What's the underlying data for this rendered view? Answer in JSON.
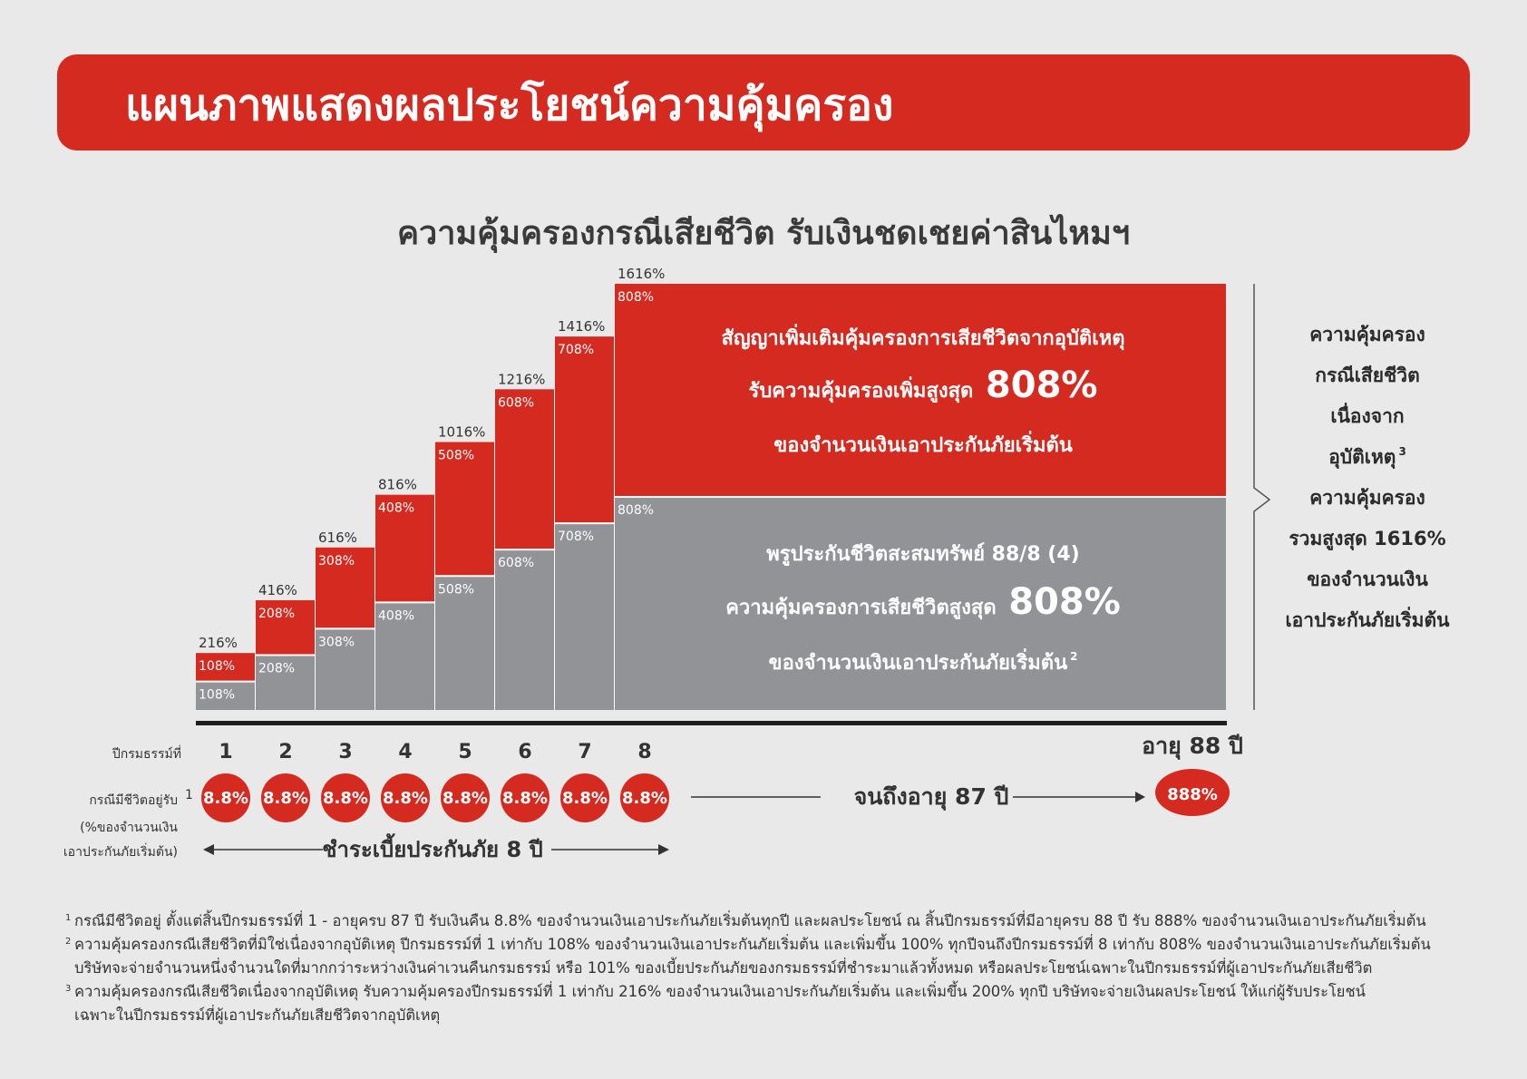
{
  "header": {
    "title": "แผนภาพแสดงผลประโยชน์ความคุ้มครอง"
  },
  "subtitle": "ความคุ้มครองกรณีเสียชีวิต รับเงินชดเชยค่าสินไหมฯ",
  "chart_data": {
    "type": "bar",
    "stacked": true,
    "categories": [
      "1",
      "2",
      "3",
      "4",
      "5",
      "6",
      "7",
      "8"
    ],
    "series": [
      {
        "values": [
          108,
          208,
          308,
          408,
          508,
          608,
          708,
          808
        ],
        "color": "#929396"
      },
      {
        "values": [
          108,
          208,
          308,
          408,
          508,
          608,
          708,
          808
        ],
        "color": "#d52a20"
      }
    ],
    "bottom_labels": [
      "108%",
      "208%",
      "308%",
      "408%",
      "508%",
      "608%",
      "708%",
      "808%"
    ],
    "red_labels": [
      "108%",
      "208%",
      "308%",
      "408%",
      "508%",
      "608%",
      "708%",
      "808%"
    ],
    "total_labels": [
      "216%",
      "416%",
      "616%",
      "816%",
      "1016%",
      "1216%",
      "1416%",
      "1616%"
    ],
    "ylim": [
      0,
      1616
    ],
    "grid": false,
    "red_block_text": {
      "line1": "สัญญาเพิ่มเติมคุ้มครองการเสียชีวิตจากอุบัติเหตุ",
      "line2_prefix": "รับความคุ้มครองเพิ่มสูงสุด",
      "line2_value": "808%",
      "line3": "ของจำนวนเงินเอาประกันภัยเริ่มต้น"
    },
    "gray_block_text": {
      "line1": "พรูประกันชีวิตสะสมทรัพย์ 88/8 (4)",
      "line2_prefix": "ความคุ้มครองการเสียชีวิตสูงสุด",
      "line2_value": "808%",
      "line3": "ของจำนวนเงินเอาประกันภัยเริ่มต้น",
      "line3_sup": "2"
    },
    "side_text": [
      "ความคุ้มครอง",
      "กรณีเสียชีวิต",
      "เนื่องจาก",
      "อุบัติเหตุ",
      "ความคุ้มครอง",
      "รวมสูงสุด 1616%",
      "ของจำนวนเงิน",
      "เอาประกันภัยเริ่มต้น"
    ],
    "side_text_sup": "3"
  },
  "bottom": {
    "policy_year_label": "ปีกรมธรรม์ที่",
    "alive_label": "กรณีมีชีวิตอยู่รับ",
    "alive_sup": "1",
    "pct_label_1": "(%ของจำนวนเงิน",
    "pct_label_2": "เอาประกันภัยเริ่มต้น)",
    "years": [
      "1",
      "2",
      "3",
      "4",
      "5",
      "6",
      "7",
      "8"
    ],
    "yearly_returns": [
      "8.8%",
      "8.8%",
      "8.8%",
      "8.8%",
      "8.8%",
      "8.8%",
      "8.8%",
      "8.8%"
    ],
    "until_text": "จนถึงอายุ 87 ปี",
    "age_label": "อายุ 88 ปี",
    "final_return": "888%",
    "pay_text": "ชำระเบี้ยประกันภัย 8 ปี"
  },
  "footnotes": [
    {
      "num": "1",
      "text": "กรณีมีชีวิตอยู่ ตั้งแต่สิ้นปีกรมธรรม์ที่ 1 - อายุครบ 87 ปี รับเงินคืน 8.8% ของจำนวนเงินเอาประกันภัยเริ่มต้นทุกปี และผลประโยชน์ ณ สิ้นปีกรมธรรม์ที่มีอายุครบ 88 ปี รับ 888% ของจำนวนเงินเอาประกันภัยเริ่มต้น"
    },
    {
      "num": "2",
      "text": "ความคุ้มครองกรณีเสียชีวิตที่มิใช่เนื่องจากอุบัติเหตุ ปีกรมธรรม์ที่ 1 เท่ากับ 108% ของจำนวนเงินเอาประกันภัยเริ่มต้น และเพิ่มขึ้น 100% ทุกปีจนถึงปีกรมธรรม์ที่ 8 เท่ากับ 808% ของจำนวนเงินเอาประกันภัยเริ่มต้น"
    },
    {
      "num": "",
      "text": "บริษัทจะจ่ายจำนวนหนึ่งจำนวนใดที่มากกว่าระหว่างเงินค่าเวนคืนกรมธรรม์ หรือ 101% ของเบี้ยประกันภัยของกรมธรรม์ที่ชำระมาแล้วทั้งหมด  หรือผลประโยชน์เฉพาะในปีกรมธรรม์ที่ผู้เอาประกันภัยเสียชีวิต"
    },
    {
      "num": "3",
      "text": "ความคุ้มครองกรณีเสียชีวิตเนื่องจากอุบัติเหตุ รับความคุ้มครองปีกรมธรรม์ที่ 1 เท่ากับ 216% ของจำนวนเงินเอาประกันภัยเริ่มต้น และเพิ่มขึ้น 200% ทุกปี บริษัทจะจ่ายเงินผลประโยชน์ ให้แก่ผู้รับประโยชน์"
    },
    {
      "num": "",
      "text": "เฉพาะในปีกรมธรรม์ที่ผู้เอาประกันภัยเสียชีวิตจากอุบัติเหตุ"
    }
  ]
}
